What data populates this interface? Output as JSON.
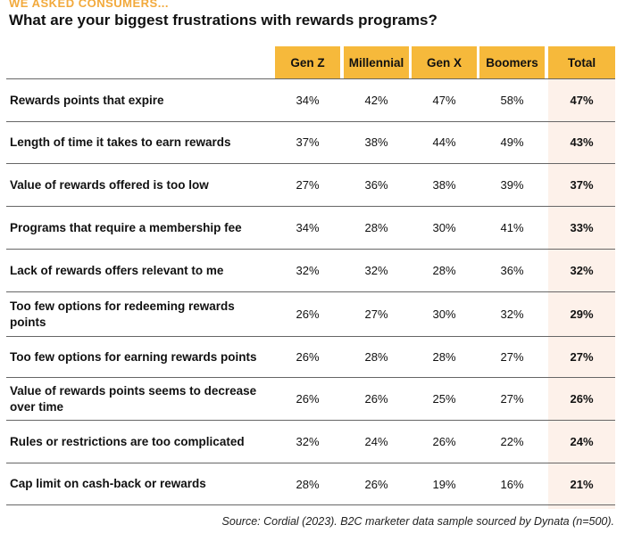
{
  "kicker": "WE ASKED CONSUMERS...",
  "title": "What are your biggest frustrations with rewards programs?",
  "source": "Source: Cordial (2023). B2C marketer data sample sourced by Dynata (n=500).",
  "colors": {
    "header": "#f6b93b",
    "kicker": "#f2a93b",
    "total_column": "#fdf1ea"
  },
  "chart_data": {
    "type": "table",
    "title": "What are your biggest frustrations with rewards programs?",
    "columns": [
      "Gen Z",
      "Millennial",
      "Gen X",
      "Boomers",
      "Total"
    ],
    "rows": [
      {
        "label": "Rewards points that expire",
        "values": [
          "34%",
          "42%",
          "47%",
          "58%",
          "47%"
        ]
      },
      {
        "label": "Length of time it takes to earn rewards",
        "values": [
          "37%",
          "38%",
          "44%",
          "49%",
          "43%"
        ]
      },
      {
        "label": "Value of rewards offered is too low",
        "values": [
          "27%",
          "36%",
          "38%",
          "39%",
          "37%"
        ]
      },
      {
        "label": "Programs that require a membership fee",
        "values": [
          "34%",
          "28%",
          "30%",
          "41%",
          "33%"
        ]
      },
      {
        "label": "Lack of rewards offers relevant to me",
        "values": [
          "32%",
          "32%",
          "28%",
          "36%",
          "32%"
        ]
      },
      {
        "label": "Too few options for redeeming rewards points",
        "values": [
          "26%",
          "27%",
          "30%",
          "32%",
          "29%"
        ]
      },
      {
        "label": "Too few options for earning rewards points",
        "values": [
          "26%",
          "28%",
          "28%",
          "27%",
          "27%"
        ]
      },
      {
        "label": "Value of rewards points seems to decrease over time",
        "values": [
          "26%",
          "26%",
          "25%",
          "27%",
          "26%"
        ]
      },
      {
        "label": "Rules or restrictions are too complicated",
        "values": [
          "32%",
          "24%",
          "26%",
          "22%",
          "24%"
        ]
      },
      {
        "label": "Cap limit on cash-back or rewards",
        "values": [
          "28%",
          "26%",
          "19%",
          "16%",
          "21%"
        ]
      }
    ]
  }
}
